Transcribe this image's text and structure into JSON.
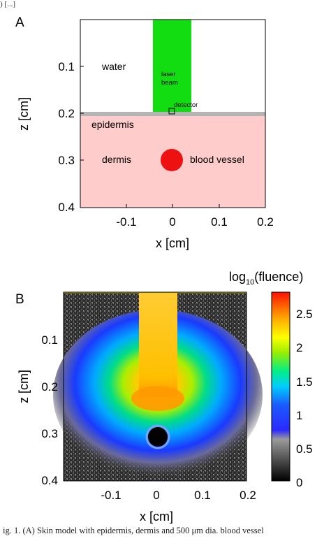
{
  "top_fragment": ") [...]",
  "caption": "ig. 1. (A) Skin model with epidermis, dermis and 500 μm dia. blood vessel",
  "panel_a": {
    "letter": "A",
    "x_label": "x [cm]",
    "z_label": "z [cm]",
    "x_ticks": [
      "-0.1",
      "0",
      "0.1",
      "0.2"
    ],
    "z_ticks": [
      "0.1",
      "0.2",
      "0.3",
      "0.4"
    ],
    "labels": {
      "water": "water",
      "laser_line1": "laser",
      "laser_line2": "beam",
      "detector": "detector",
      "epidermis": "epidermis",
      "dermis": "dermis",
      "blood_vessel": "blood vessel"
    },
    "colors": {
      "water": "#ffffff",
      "laser": "#11dd11",
      "epidermis": "#b4b4b4",
      "dermis": "#ffcccc",
      "vessel": "#ee1111"
    }
  },
  "panel_b": {
    "letter": "B",
    "x_label": "x [cm]",
    "z_label": "z [cm]",
    "x_ticks": [
      "-0.1",
      "0",
      "0.1",
      "0.2"
    ],
    "z_ticks": [
      "0.1",
      "0.2",
      "0.3",
      "0.4"
    ],
    "colorbar_title_base": "log",
    "colorbar_title_sub": "10",
    "colorbar_title_rest": "(fluence)",
    "colorbar_ticks": [
      "2.5",
      "2",
      "1.5",
      "1",
      "0.5",
      "0"
    ],
    "colorbar_range": [
      0,
      2.8
    ]
  }
}
